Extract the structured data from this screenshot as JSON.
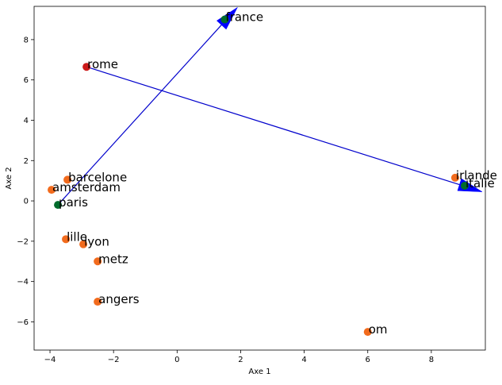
{
  "chart_data": {
    "type": "scatter",
    "xlabel": "Axe 1",
    "ylabel": "Axe 2",
    "xlim": [
      -4.5,
      9.7
    ],
    "ylim": [
      -7.4,
      9.65
    ],
    "xticks": [
      -4,
      -2,
      0,
      2,
      4,
      6,
      8
    ],
    "yticks": [
      -6,
      -4,
      -2,
      0,
      2,
      4,
      6,
      8
    ],
    "xtick_labels": [
      "−4",
      "−2",
      "0",
      "2",
      "4",
      "6",
      "8"
    ],
    "ytick_labels": [
      "−6",
      "−4",
      "−2",
      "0",
      "2",
      "4",
      "6",
      "8"
    ],
    "colors": {
      "orange": "#f26b1d",
      "green": "#006b2c",
      "red": "#cc1a1a",
      "arrow": "#0000cc",
      "arrow_head": "#0000ff"
    },
    "points": [
      {
        "label": "france",
        "x": 1.5,
        "y": 9.0,
        "color": "green"
      },
      {
        "label": "rome",
        "x": -2.85,
        "y": 6.65,
        "color": "red"
      },
      {
        "label": "irlande",
        "x": 8.75,
        "y": 1.15,
        "color": "orange"
      },
      {
        "label": "italie",
        "x": 9.05,
        "y": 0.75,
        "color": "green"
      },
      {
        "label": "barcelone",
        "x": -3.45,
        "y": 1.05,
        "color": "orange"
      },
      {
        "label": "amsterdam",
        "x": -3.95,
        "y": 0.55,
        "color": "orange"
      },
      {
        "label": "paris",
        "x": -3.75,
        "y": -0.2,
        "color": "green"
      },
      {
        "label": "lille",
        "x": -3.5,
        "y": -1.9,
        "color": "orange"
      },
      {
        "label": "lyon",
        "x": -2.95,
        "y": -2.15,
        "color": "orange"
      },
      {
        "label": "metz",
        "x": -2.5,
        "y": -3.0,
        "color": "orange"
      },
      {
        "label": "angers",
        "x": -2.5,
        "y": -5.0,
        "color": "orange"
      },
      {
        "label": "om",
        "x": 6.0,
        "y": -6.5,
        "color": "orange"
      }
    ],
    "arrows": [
      {
        "from": [
          -3.75,
          -0.2
        ],
        "to": [
          1.9,
          9.6
        ]
      },
      {
        "from": [
          -2.85,
          6.65
        ],
        "to": [
          9.6,
          0.45
        ]
      }
    ]
  }
}
